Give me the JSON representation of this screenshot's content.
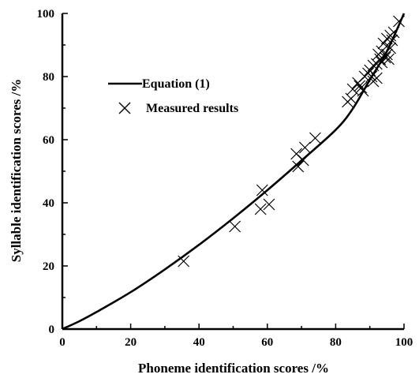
{
  "chart_data": {
    "type": "scatter",
    "xlabel": "Phoneme identification scores /%",
    "ylabel": "Syllable identification scores /%",
    "xlim": [
      0,
      100
    ],
    "ylim": [
      0,
      100
    ],
    "xticks": [
      "0",
      "20",
      "40",
      "60",
      "80",
      "100"
    ],
    "yticks": [
      "0",
      "20",
      "40",
      "60",
      "80",
      "100"
    ],
    "grid": false,
    "legend_position": "upper-left",
    "series": [
      {
        "name": "Equation (1)",
        "kind": "line",
        "color": "#000000",
        "points": [
          [
            0,
            0
          ],
          [
            5,
            2.5
          ],
          [
            10,
            5.4
          ],
          [
            20,
            11.7
          ],
          [
            30,
            18.9
          ],
          [
            40,
            26.7
          ],
          [
            50,
            35.1
          ],
          [
            60,
            44.0
          ],
          [
            70,
            53.4
          ],
          [
            80,
            63.1
          ],
          [
            85,
            69.8
          ],
          [
            90,
            79.0
          ],
          [
            95,
            88.0
          ],
          [
            100,
            100
          ]
        ]
      },
      {
        "name": "Measured results",
        "kind": "scatter",
        "marker": "x",
        "color": "#000000",
        "points": [
          [
            35.5,
            21.5
          ],
          [
            50.5,
            32.5
          ],
          [
            58,
            38
          ],
          [
            58.5,
            44
          ],
          [
            60.5,
            39.5
          ],
          [
            68.5,
            55.5
          ],
          [
            69,
            51.5
          ],
          [
            70.5,
            53.5
          ],
          [
            71,
            57.5
          ],
          [
            74,
            60.5
          ],
          [
            83.5,
            72
          ],
          [
            84.5,
            73
          ],
          [
            85,
            76
          ],
          [
            86.5,
            78
          ],
          [
            87,
            77
          ],
          [
            87.5,
            76.5
          ],
          [
            88,
            75.5
          ],
          [
            88.5,
            80
          ],
          [
            89.5,
            81
          ],
          [
            90,
            82
          ],
          [
            90.5,
            80
          ],
          [
            91,
            83.5
          ],
          [
            91,
            78.5
          ],
          [
            92,
            84
          ],
          [
            92,
            79.5
          ],
          [
            92.5,
            87
          ],
          [
            93,
            85.5
          ],
          [
            93.5,
            88
          ],
          [
            93.5,
            84.5
          ],
          [
            94,
            90.5
          ],
          [
            94.5,
            86
          ],
          [
            95,
            92
          ],
          [
            95,
            87
          ],
          [
            95.5,
            85.5
          ],
          [
            96,
            93
          ],
          [
            96,
            89
          ],
          [
            96.5,
            91.5
          ],
          [
            97,
            94
          ],
          [
            98.5,
            97.5
          ]
        ]
      }
    ]
  }
}
